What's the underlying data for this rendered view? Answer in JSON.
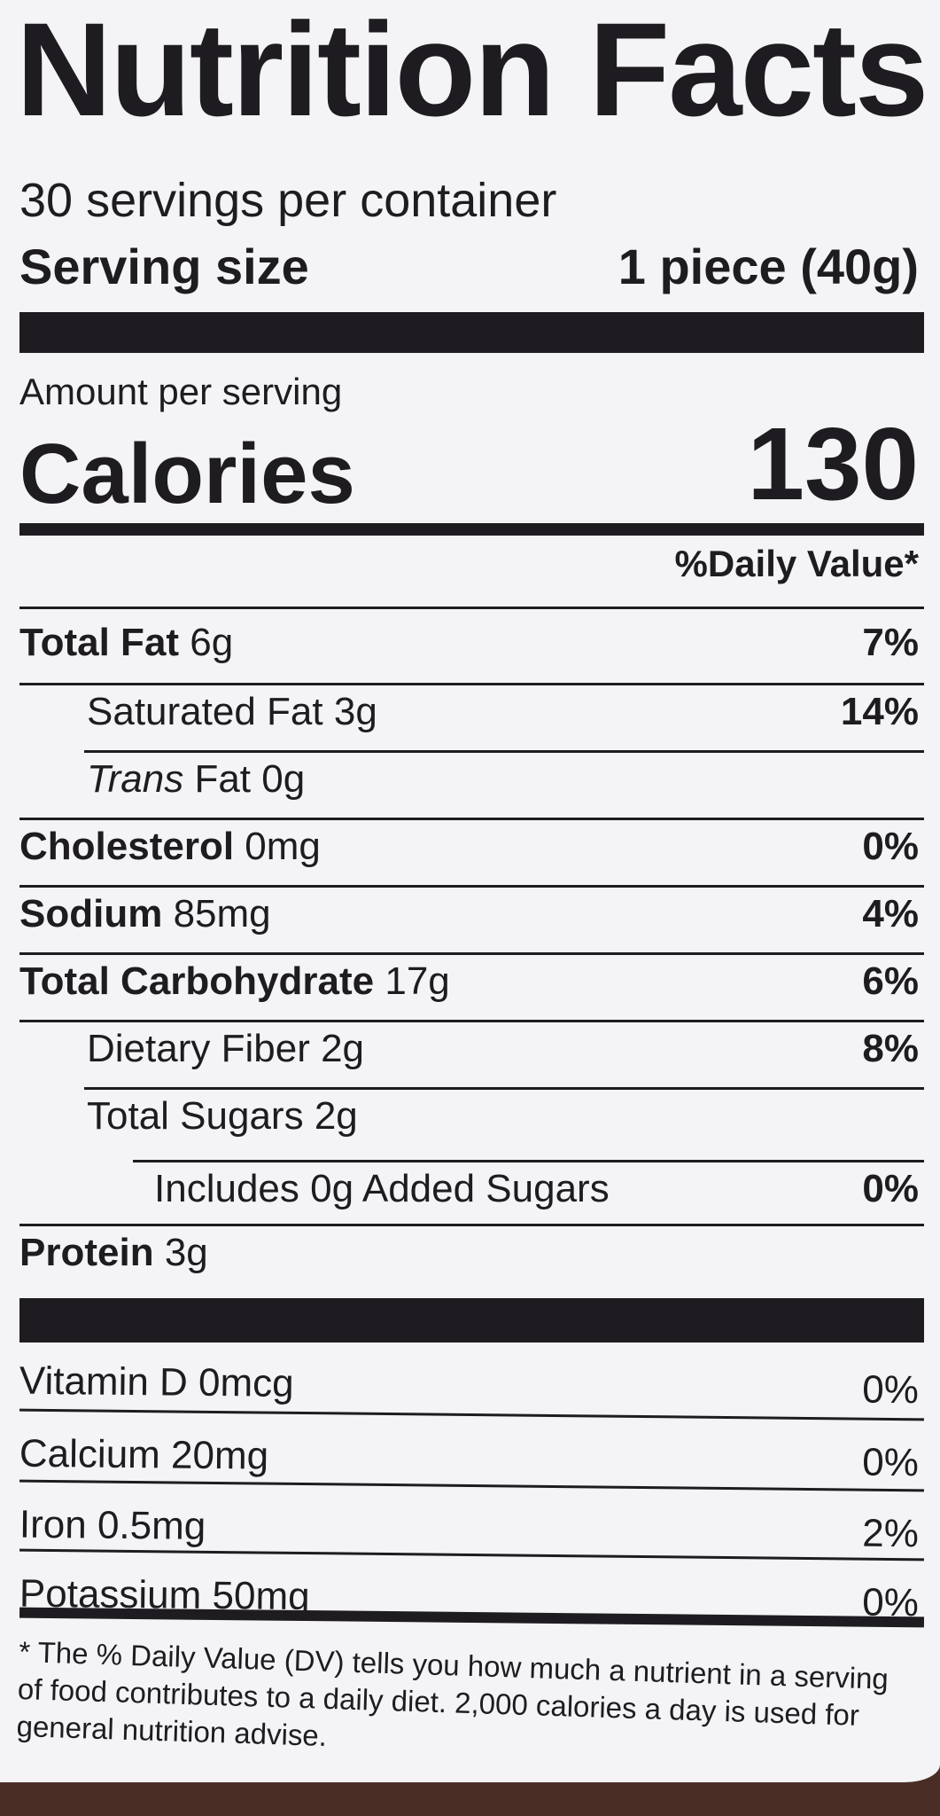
{
  "title": "Nutrition Facts",
  "servings_per_container": "30 servings per container",
  "serving_size": {
    "label": "Serving size",
    "value": "1 piece (40g)"
  },
  "amount_per_serving": "Amount per serving",
  "calories": {
    "label": "Calories",
    "value": "130"
  },
  "daily_value_header": "%Daily Value*",
  "nutrients": [
    {
      "name": "Total Fat",
      "amount": "6g",
      "dv": "7%",
      "bold": true,
      "indent": 0
    },
    {
      "name": "Saturated Fat",
      "amount": "3g",
      "dv": "14%",
      "bold": false,
      "indent": 1
    },
    {
      "name": "Trans",
      "name_suffix": "Fat",
      "amount": "0g",
      "dv": "",
      "bold": false,
      "indent": 1
    },
    {
      "name": "Cholesterol",
      "amount": "0mg",
      "dv": "0%",
      "bold": true,
      "indent": 0
    },
    {
      "name": "Sodium",
      "amount": "85mg",
      "dv": "4%",
      "bold": true,
      "indent": 0
    },
    {
      "name": "Total Carbohydrate",
      "amount": "17g",
      "dv": "6%",
      "bold": true,
      "indent": 0
    },
    {
      "name": "Dietary Fiber",
      "amount": "2g",
      "dv": "8%",
      "bold": false,
      "indent": 1
    },
    {
      "name": "Total Sugars",
      "amount": "2g",
      "dv": "",
      "bold": false,
      "indent": 1
    },
    {
      "name": "Includes 0g Added Sugars",
      "amount": "",
      "dv": "0%",
      "bold": false,
      "indent": 2
    },
    {
      "name": "Protein",
      "amount": "3g",
      "dv": "",
      "bold": true,
      "indent": 0
    }
  ],
  "vitamins": [
    {
      "name": "Vitamin D",
      "amount": "0mcg",
      "dv": "0%"
    },
    {
      "name": "Calcium",
      "amount": "20mg",
      "dv": "0%"
    },
    {
      "name": "Iron",
      "amount": "0.5mg",
      "dv": "2%"
    },
    {
      "name": "Potassium",
      "amount": "50mg",
      "dv": "0%"
    }
  ],
  "footnote": "* The % Daily Value (DV) tells you how much a nutrient in a serving of food contributes to a daily diet. 2,000 calories a day is used for general nutrition advise."
}
